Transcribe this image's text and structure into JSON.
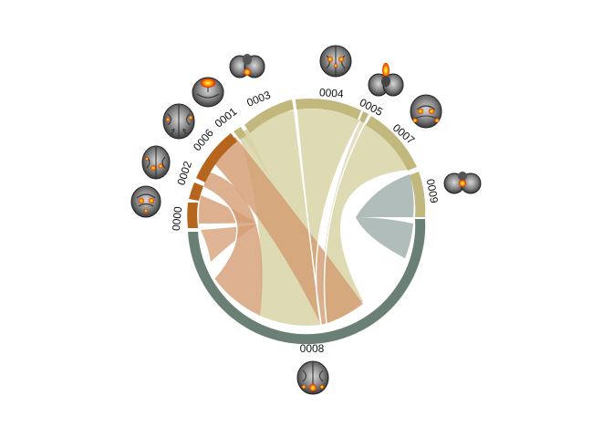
{
  "diagram": {
    "type": "chord",
    "nodes": [
      {
        "id": "0000",
        "label": "0000",
        "color": "#b5651d"
      },
      {
        "id": "0002",
        "label": "0002",
        "color": "#b5651d"
      },
      {
        "id": "0006",
        "label": "0006",
        "color": "#b5651d"
      },
      {
        "id": "0001",
        "label": "0001",
        "color": "#c2b77c"
      },
      {
        "id": "0003",
        "label": "0003",
        "color": "#c2b77c"
      },
      {
        "id": "0004",
        "label": "0004",
        "color": "#c2b77c"
      },
      {
        "id": "0005",
        "label": "0005",
        "color": "#c2b77c"
      },
      {
        "id": "0007",
        "label": "0007",
        "color": "#c2b77c"
      },
      {
        "id": "0009",
        "label": "0009",
        "color": "#c2b77c"
      },
      {
        "id": "0008",
        "label": "0008",
        "color": "#6b8074"
      }
    ],
    "links": [
      {
        "from": "0002",
        "to": "0008"
      },
      {
        "from": "0000",
        "to": "0002"
      },
      {
        "from": "0000",
        "to": "0006"
      },
      {
        "from": "0006",
        "to": "0008"
      },
      {
        "from": "0003",
        "to": "0008"
      },
      {
        "from": "0004",
        "to": "0008"
      },
      {
        "from": "0005",
        "to": "0008"
      },
      {
        "from": "0007",
        "to": "0008"
      },
      {
        "from": "0009",
        "to": "0008"
      },
      {
        "from": "0001",
        "to": "0003"
      }
    ],
    "colors": {
      "brown": "#b5651d",
      "brown_ribbon": "#d49c73",
      "tan": "#c2b77c",
      "tan_ribbon": "#d8d3a6",
      "slate": "#6b8074",
      "slate_ribbon": "#9eaca9"
    }
  }
}
